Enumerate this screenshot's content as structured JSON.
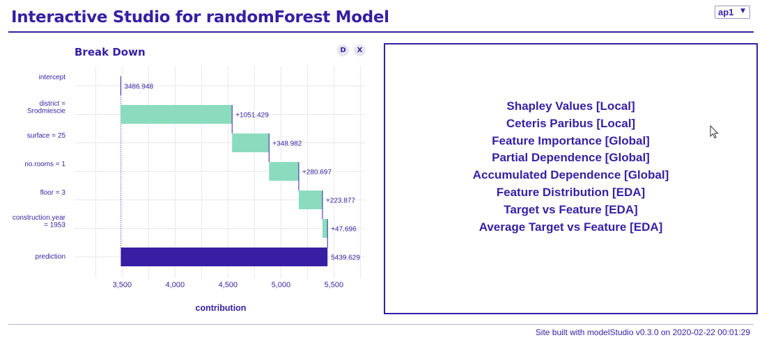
{
  "header": {
    "title": "Interactive Studio for randomForest Model",
    "observation_selected": "ap1"
  },
  "left_panel": {
    "buttons": {
      "describe": "D",
      "close": "X"
    }
  },
  "chart_data": {
    "type": "bar",
    "subtype": "waterfall",
    "title": "Break Down",
    "xlabel": "contribution",
    "ylabel": "",
    "xlim": [
      3050,
      5800
    ],
    "xticks": [
      3500,
      4000,
      4500,
      5000,
      5500
    ],
    "xtick_labels": [
      "3,500",
      "4,000",
      "4,500",
      "5,000",
      "5,500"
    ],
    "grid": true,
    "bars": [
      {
        "label": "intercept",
        "label_lines": [
          "intercept"
        ],
        "start": 3486.948,
        "end": 3486.948,
        "text": "3486.948",
        "kind": "intercept"
      },
      {
        "label": "district = Srodmiescie",
        "label_lines": [
          "district =",
          "Srodmiescie"
        ],
        "start": 3486.948,
        "end": 4538.377,
        "text": "+1051.429",
        "kind": "positive"
      },
      {
        "label": "surface = 25",
        "label_lines": [
          "surface = 25"
        ],
        "start": 4538.377,
        "end": 4887.359,
        "text": "+348.982",
        "kind": "positive"
      },
      {
        "label": "no.rooms = 1",
        "label_lines": [
          "no.rooms = 1"
        ],
        "start": 4887.359,
        "end": 5168.056,
        "text": "+280.697",
        "kind": "positive"
      },
      {
        "label": "floor = 3",
        "label_lines": [
          "floor = 3"
        ],
        "start": 5168.056,
        "end": 5391.933,
        "text": "+223.877",
        "kind": "positive"
      },
      {
        "label": "construction.year = 1953",
        "label_lines": [
          "construction.year",
          "= 1953"
        ],
        "start": 5391.933,
        "end": 5439.629,
        "text": "+47.696",
        "kind": "positive"
      },
      {
        "label": "prediction",
        "label_lines": [
          "prediction"
        ],
        "start": 3486.948,
        "end": 5439.629,
        "text": "5439.629",
        "kind": "prediction"
      }
    ],
    "colors": {
      "positive": "#8bdcbe",
      "negative": "#f05a71",
      "prediction": "#371ea3",
      "text": "#371ea3",
      "grid": "#e8e8ee"
    }
  },
  "right_panel": {
    "menu": [
      "Shapley Values [Local]",
      "Ceteris Paribus [Local]",
      "Feature Importance [Global]",
      "Partial Dependence [Global]",
      "Accumulated Dependence [Global]",
      "Feature Distribution [EDA]",
      "Target vs Feature [EDA]",
      "Average Target vs Feature [EDA]"
    ]
  },
  "footer": {
    "text": "Site built with modelStudio v0.3.0 on 2020-02-22 00:01:29"
  }
}
